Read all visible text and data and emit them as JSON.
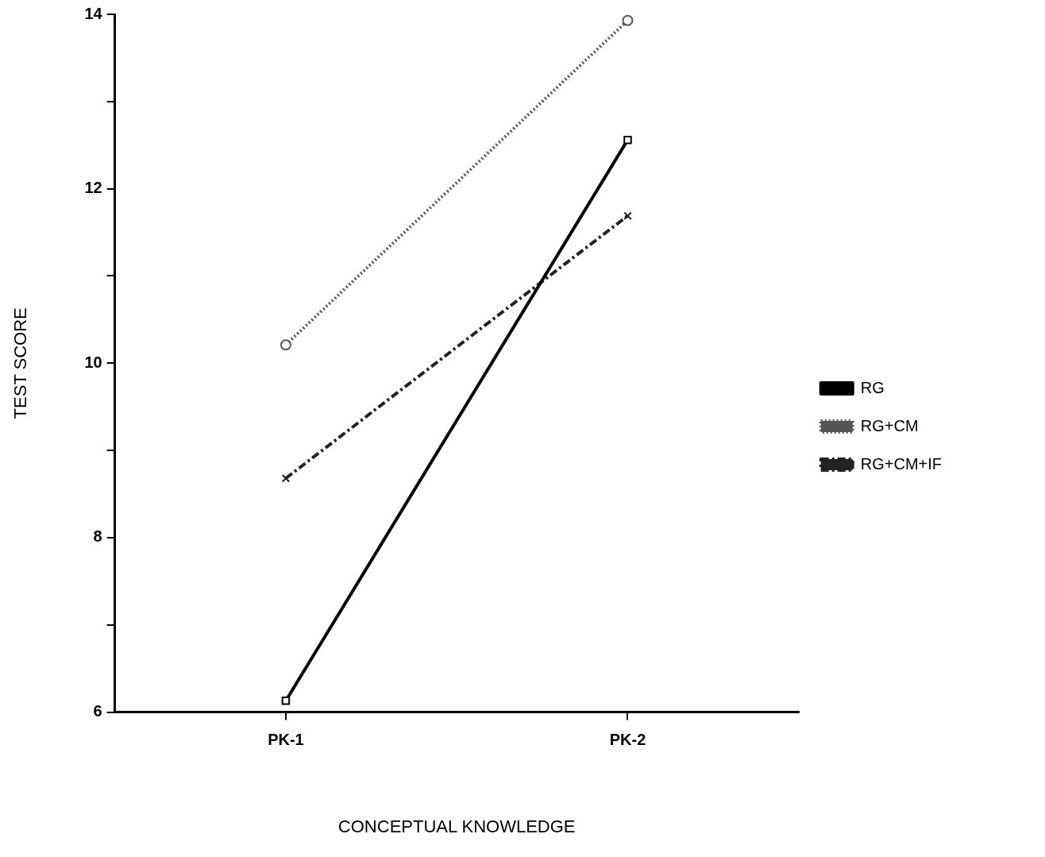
{
  "chart_data": {
    "type": "line",
    "xlabel": "CONCEPTUAL KNOWLEDGE",
    "ylabel": "TEST SCORE",
    "categories": [
      "PK-1",
      "PK-2"
    ],
    "series": [
      {
        "name": "RG",
        "color": "#000000",
        "values": [
          6.13,
          12.56
        ],
        "marker": "square",
        "line_style": "solid"
      },
      {
        "name": "RG+CM",
        "color": "#555555",
        "values": [
          10.21,
          13.93
        ],
        "marker": "circle",
        "line_style": "dotted"
      },
      {
        "name": "RG+CM+IF",
        "color": "#222222",
        "values": [
          8.68,
          11.69
        ],
        "marker": "cross",
        "line_style": "dashed"
      }
    ],
    "ylim": [
      6,
      14
    ],
    "yticks": [
      6,
      {
        "value": 7,
        "label": null
      },
      8,
      {
        "value": 9,
        "label": null
      },
      10,
      {
        "value": 11,
        "label": null
      },
      12,
      {
        "value": 13,
        "label": null
      },
      14
    ],
    "grid": false,
    "legend": "right"
  }
}
